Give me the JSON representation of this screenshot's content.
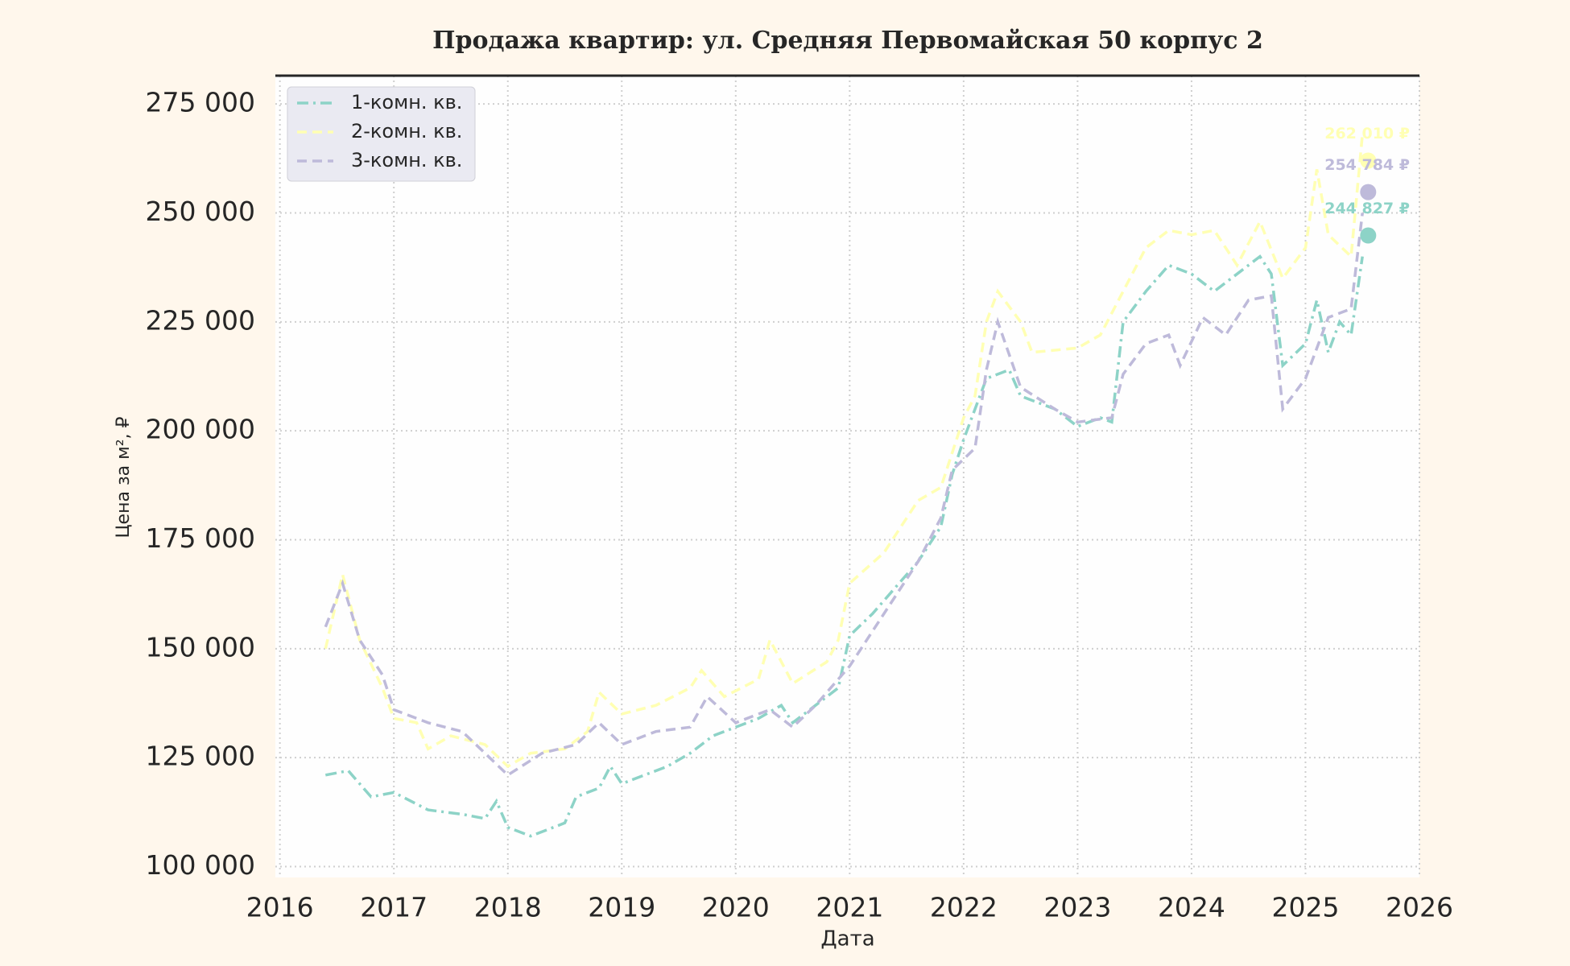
{
  "chart_data": {
    "type": "line",
    "title": "Продажа квартир: ул. Средняя Первомайская 50 корпус 2",
    "x_label": "Дата",
    "y_label": "Цена за м², ₽",
    "xlim": [
      2015.96,
      2026
    ],
    "xticks": [
      2016,
      2017,
      2018,
      2019,
      2020,
      2021,
      2022,
      2023,
      2024,
      2025,
      2026
    ],
    "ylim": [
      97500,
      281500
    ],
    "yticks": [
      {
        "value": 100000,
        "label": "100 000"
      },
      {
        "value": 125000,
        "label": "125 000"
      },
      {
        "value": 150000,
        "label": "150 000"
      },
      {
        "value": 175000,
        "label": "175 000"
      },
      {
        "value": 200000,
        "label": "200 000"
      },
      {
        "value": 225000,
        "label": "225 000"
      },
      {
        "value": 250000,
        "label": "250 000"
      },
      {
        "value": 275000,
        "label": "275 000"
      }
    ],
    "grid": true,
    "legend": "upper left",
    "series": [
      {
        "name": "1-комн. кв.",
        "color": "#8dd3c7",
        "linestyle": "-.",
        "x": [
          2016.4,
          2016.6,
          2016.8,
          2017.0,
          2017.3,
          2017.6,
          2017.8,
          2017.9,
          2018.0,
          2018.2,
          2018.4,
          2018.5,
          2018.6,
          2018.8,
          2018.9,
          2019.0,
          2019.2,
          2019.4,
          2019.6,
          2019.8,
          2020.0,
          2020.2,
          2020.4,
          2020.5,
          2020.7,
          2020.9,
          2021.0,
          2021.2,
          2021.4,
          2021.6,
          2021.8,
          2021.9,
          2022.0,
          2022.2,
          2022.4,
          2022.5,
          2022.8,
          2023.0,
          2023.2,
          2023.3,
          2023.4,
          2023.6,
          2023.8,
          2024.0,
          2024.2,
          2024.4,
          2024.6,
          2024.7,
          2024.8,
          2025.0,
          2025.1,
          2025.2,
          2025.3,
          2025.4,
          2025.5
        ],
        "values": [
          121000,
          122000,
          116000,
          117000,
          113000,
          112000,
          111000,
          115000,
          109000,
          107000,
          109000,
          110000,
          116000,
          118000,
          123000,
          119000,
          121000,
          123000,
          126000,
          130000,
          132000,
          134000,
          137000,
          133000,
          137000,
          141000,
          153000,
          158000,
          164000,
          170000,
          178000,
          190000,
          198000,
          212000,
          214000,
          208000,
          205000,
          201000,
          203000,
          202000,
          225000,
          232000,
          238000,
          236000,
          232000,
          236000,
          240000,
          236000,
          215000,
          220000,
          230000,
          218000,
          225000,
          222000,
          240000
        ],
        "last": {
          "x": 2025.55,
          "value": 244827,
          "label": "244 827 ₽"
        }
      },
      {
        "name": "2-комн. кв.",
        "color": "#ffffb3",
        "linestyle": "--",
        "x": [
          2016.4,
          2016.55,
          2016.7,
          2016.9,
          2017.0,
          2017.2,
          2017.3,
          2017.5,
          2017.8,
          2018.0,
          2018.2,
          2018.5,
          2018.7,
          2018.8,
          2019.0,
          2019.3,
          2019.6,
          2019.7,
          2019.9,
          2020.2,
          2020.3,
          2020.5,
          2020.8,
          2020.9,
          2021.0,
          2021.3,
          2021.6,
          2021.8,
          2022.0,
          2022.1,
          2022.2,
          2022.3,
          2022.5,
          2022.6,
          2023.0,
          2023.2,
          2023.4,
          2023.6,
          2023.8,
          2024.0,
          2024.2,
          2024.4,
          2024.6,
          2024.8,
          2025.0,
          2025.1,
          2025.2,
          2025.4,
          2025.5
        ],
        "values": [
          150000,
          167000,
          152000,
          141000,
          134000,
          133000,
          127000,
          130000,
          128000,
          123000,
          126000,
          127000,
          131000,
          140000,
          135000,
          137000,
          141000,
          145000,
          139000,
          143000,
          152000,
          142000,
          147000,
          152000,
          165000,
          172000,
          184000,
          187000,
          203000,
          208000,
          225000,
          232000,
          225000,
          218000,
          219000,
          222000,
          232000,
          242000,
          246000,
          245000,
          246000,
          238000,
          248000,
          235000,
          242000,
          260000,
          245000,
          240000,
          268000
        ],
        "last": {
          "x": 2025.55,
          "value": 262010,
          "label": "262 010 ₽"
        }
      },
      {
        "name": "3-комн. кв.",
        "color": "#bebada",
        "linestyle": "--",
        "x": [
          2016.4,
          2016.55,
          2016.7,
          2016.9,
          2017.0,
          2017.3,
          2017.6,
          2017.8,
          2018.0,
          2018.3,
          2018.6,
          2018.8,
          2019.0,
          2019.3,
          2019.6,
          2019.75,
          2020.0,
          2020.3,
          2020.5,
          2020.7,
          2021.0,
          2021.3,
          2021.6,
          2021.8,
          2021.9,
          2022.1,
          2022.2,
          2022.3,
          2022.5,
          2022.8,
          2023.0,
          2023.3,
          2023.4,
          2023.6,
          2023.8,
          2023.9,
          2024.1,
          2024.3,
          2024.5,
          2024.7,
          2024.8,
          2025.0,
          2025.2,
          2025.4,
          2025.5
        ],
        "values": [
          155000,
          165000,
          152000,
          144000,
          136000,
          133000,
          131000,
          126000,
          121000,
          126000,
          128000,
          133000,
          128000,
          131000,
          132000,
          139000,
          133000,
          136000,
          132000,
          137000,
          146000,
          158000,
          170000,
          180000,
          191000,
          196000,
          214000,
          225000,
          210000,
          205000,
          202000,
          203000,
          213000,
          220000,
          222000,
          215000,
          226000,
          222000,
          230000,
          231000,
          205000,
          212000,
          226000,
          228000,
          250000
        ],
        "last": {
          "x": 2025.55,
          "value": 254784,
          "label": "254 784 ₽"
        }
      }
    ]
  }
}
